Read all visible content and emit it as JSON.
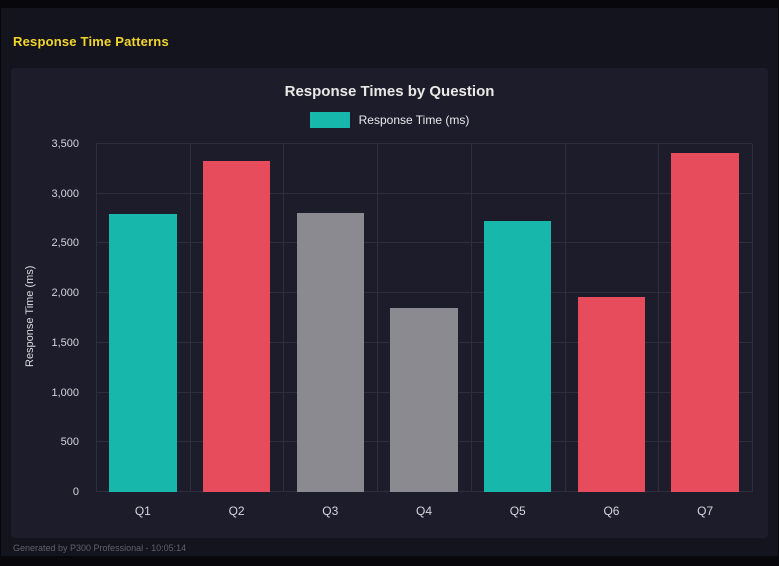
{
  "header": {
    "title": "Response Time Patterns"
  },
  "footer": {
    "text": "Generated by P300 Professional - 10:05:14"
  },
  "colors": {
    "heading": "#f2d62c",
    "teal": "#17b8ab",
    "red": "#e74c5c",
    "gray": "#8a8a90",
    "grid": "#2e2e3c",
    "panel_bg": "#1c1c2b",
    "page_bg": "#14141f"
  },
  "chart_data": {
    "type": "bar",
    "title": "Response Times by Question",
    "legend": "Response Time (ms)",
    "legend_position": "top",
    "xlabel": "",
    "ylabel": "Response Time (ms)",
    "categories": [
      "Q1",
      "Q2",
      "Q3",
      "Q4",
      "Q5",
      "Q6",
      "Q7"
    ],
    "values": [
      2800,
      3330,
      2810,
      1850,
      2730,
      1960,
      3410
    ],
    "bar_colors": [
      "#17b8ab",
      "#e74c5c",
      "#8a8a90",
      "#8a8a90",
      "#17b8ab",
      "#e74c5c",
      "#e74c5c"
    ],
    "ylim": [
      0,
      3500
    ],
    "yticks": [
      0,
      500,
      1000,
      1500,
      2000,
      2500,
      3000,
      3500
    ],
    "ytick_labels": [
      "0",
      "500",
      "1,000",
      "1,500",
      "2,000",
      "2,500",
      "3,000",
      "3,500"
    ],
    "grid": true
  }
}
